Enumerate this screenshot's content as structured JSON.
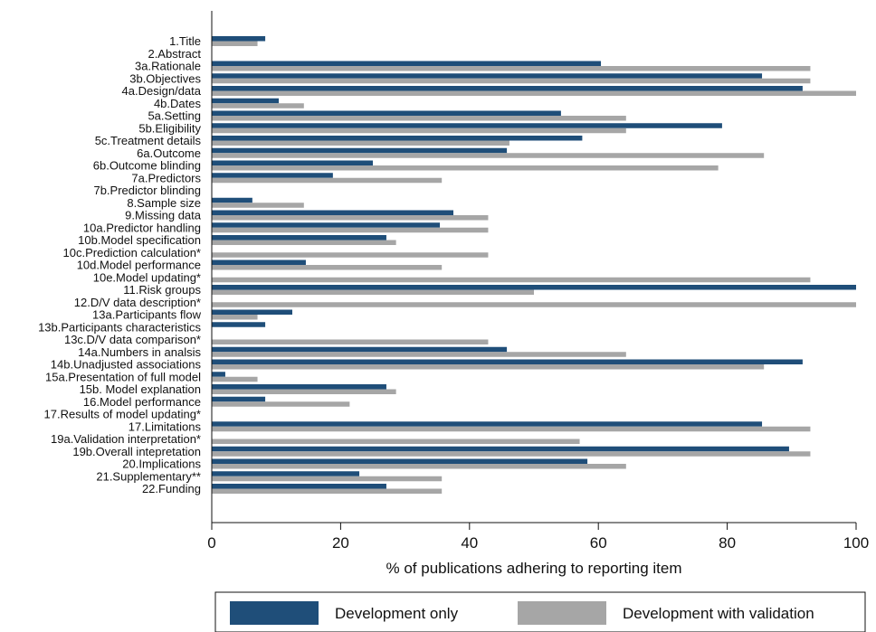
{
  "chart_data": {
    "type": "bar",
    "orientation": "horizontal",
    "xlabel": "% of publications adhering to reporting item",
    "xlim": [
      0,
      100
    ],
    "xticks": [
      0,
      20,
      40,
      60,
      80,
      100
    ],
    "grid": false,
    "legend_position": "bottom",
    "colors": {
      "development_only": "#1f4e79",
      "development_with_validation": "#a6a6a6"
    },
    "categories": [
      "1.Title",
      "2.Abstract",
      "3a.Rationale",
      "3b.Objectives",
      "4a.Design/data",
      "4b.Dates",
      "5a.Setting",
      "5b.Eligibility",
      "5c.Treatment details",
      "6a.Outcome",
      "6b.Outcome blinding",
      "7a.Predictors",
      "7b.Predictor blinding",
      "8.Sample size",
      "9.Missing data",
      "10a.Predictor handling",
      "10b.Model specification",
      "10c.Prediction calculation*",
      "10d.Model performance",
      "10e.Model updating*",
      "11.Risk groups",
      "12.D/V data description*",
      "13a.Participants flow",
      "13b.Participants characteristics",
      "13c.D/V data comparison*",
      "14a.Numbers in analsis",
      "14b.Unadjusted associations",
      "15a.Presentation of full model",
      "15b. Model explanation",
      "16.Model performance",
      "17.Results of model updating*",
      "17.Limitations",
      "19a.Validation interpretation*",
      "19b.Overall intepretation",
      "20.Implications",
      "21.Supplementary**",
      "22.Funding"
    ],
    "series": [
      {
        "name": "Development only",
        "values": [
          8.3,
          0,
          60.4,
          85.4,
          91.7,
          10.4,
          54.2,
          79.2,
          57.5,
          45.8,
          25,
          18.8,
          0,
          6.3,
          37.5,
          35.4,
          27.1,
          0,
          14.6,
          0,
          100,
          0,
          12.5,
          8.3,
          0,
          45.8,
          91.7,
          2.1,
          27.1,
          8.3,
          0,
          85.4,
          0,
          89.6,
          58.3,
          22.9,
          27.1
        ]
      },
      {
        "name": "Development with validation",
        "values": [
          7.1,
          0,
          92.9,
          92.9,
          100,
          14.3,
          64.3,
          64.3,
          46.2,
          85.7,
          78.6,
          35.7,
          0,
          14.3,
          42.9,
          42.9,
          28.6,
          42.9,
          35.7,
          92.9,
          50,
          100,
          7.1,
          0,
          42.9,
          64.3,
          85.7,
          7.1,
          28.6,
          21.4,
          0,
          92.9,
          57.1,
          92.9,
          64.3,
          35.7,
          35.7
        ]
      }
    ]
  }
}
